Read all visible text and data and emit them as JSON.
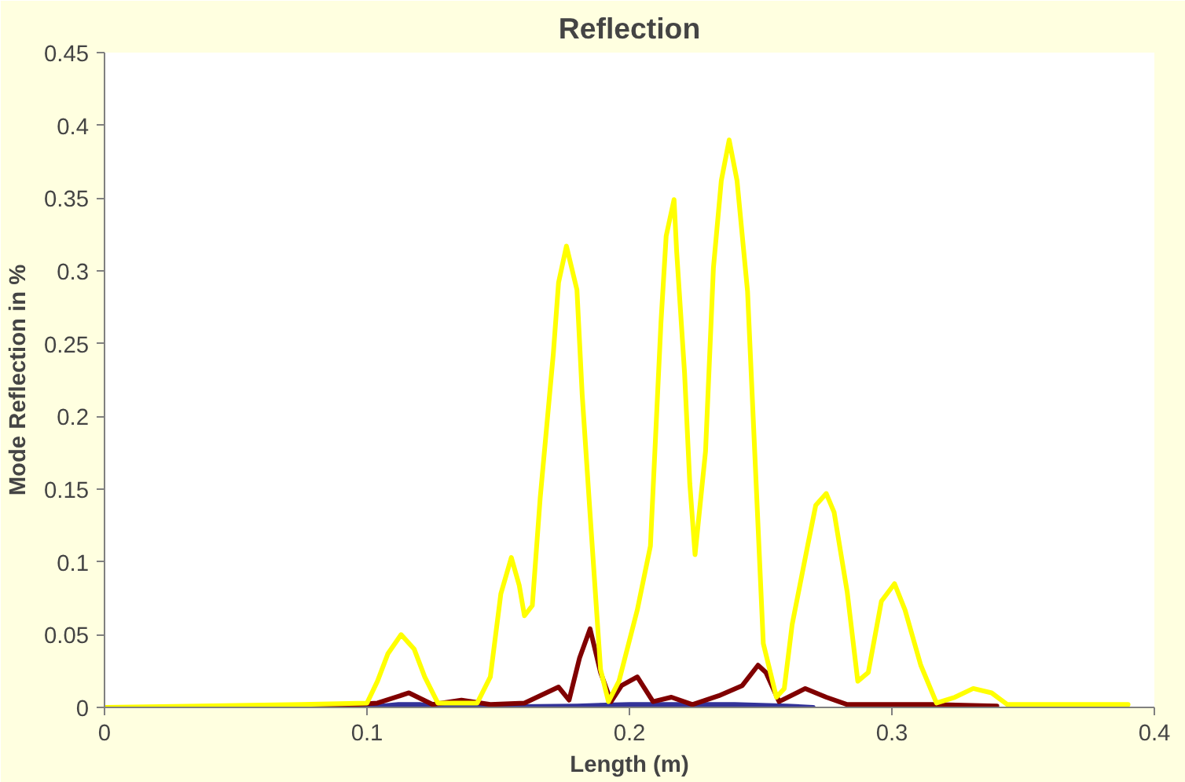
{
  "chart_data": {
    "type": "line",
    "title": "Reflection",
    "xlabel": "Length (m)",
    "ylabel": "Mode Reflection in %",
    "xlim": [
      0,
      0.4
    ],
    "ylim": [
      0,
      0.45
    ],
    "xticks": [
      0,
      0.1,
      0.2,
      0.3,
      0.4
    ],
    "yticks": [
      0,
      0.05,
      0.1,
      0.15,
      0.2,
      0.25,
      0.3,
      0.35,
      0.4,
      0.45
    ],
    "grid": false,
    "marker": "none",
    "line_style": "solid",
    "series": [
      {
        "color": "#333399",
        "x": [
          0,
          0.1,
          0.112,
          0.12,
          0.128,
          0.18,
          0.2,
          0.22,
          0.24,
          0.26,
          0.27
        ],
        "values": [
          0,
          0,
          0.002,
          0.002,
          0,
          0.001,
          0.002,
          0.002,
          0.002,
          0.001,
          0
        ]
      },
      {
        "color": "#800000",
        "x": [
          0,
          0.077,
          0.104,
          0.116,
          0.125,
          0.136,
          0.147,
          0.16,
          0.173,
          0.177,
          0.181,
          0.185,
          0.189,
          0.193,
          0.197,
          0.203,
          0.209,
          0.216,
          0.224,
          0.234,
          0.243,
          0.249,
          0.252,
          0.257,
          0.267,
          0.275,
          0.283,
          0.297,
          0.315,
          0.34
        ],
        "values": [
          0,
          null,
          0.003,
          0.01,
          0.002,
          0.005,
          0.002,
          0.003,
          0.014,
          0.005,
          0.034,
          0.054,
          0.024,
          0.004,
          0.015,
          0.021,
          0.004,
          0.007,
          0.002,
          0.008,
          0.015,
          0.029,
          0.024,
          0.004,
          0.013,
          0.007,
          0.002,
          0.002,
          0.002,
          0.001
        ]
      },
      {
        "color": "#ffff00",
        "x": [
          0,
          0.075,
          0.1,
          0.104,
          0.108,
          0.113,
          0.118,
          0.122,
          0.127,
          0.142,
          0.147,
          0.151,
          0.155,
          0.158,
          0.16,
          0.163,
          0.166,
          0.171,
          0.173,
          0.176,
          0.18,
          0.182,
          0.185,
          0.189,
          0.192,
          0.196,
          0.203,
          0.208,
          0.212,
          0.214,
          0.217,
          0.218,
          0.221,
          0.223,
          0.225,
          0.229,
          0.232,
          0.235,
          0.238,
          0.241,
          0.245,
          0.248,
          0.251,
          0.256,
          0.259,
          0.262,
          0.268,
          0.271,
          0.275,
          0.278,
          0.283,
          0.287,
          0.291,
          0.296,
          0.301,
          0.305,
          0.311,
          0.317,
          0.324,
          0.331,
          0.338,
          0.344,
          0.39
        ],
        "values": [
          0,
          0.002,
          0.003,
          0.018,
          0.037,
          0.05,
          0.04,
          0.021,
          0.003,
          0.003,
          0.021,
          0.078,
          0.103,
          0.084,
          0.063,
          0.07,
          0.144,
          0.243,
          0.292,
          0.317,
          0.287,
          0.215,
          0.133,
          0.026,
          0.004,
          0.018,
          0.067,
          0.111,
          0.264,
          0.324,
          0.349,
          0.313,
          0.23,
          0.154,
          0.105,
          0.176,
          0.302,
          0.362,
          0.39,
          0.362,
          0.286,
          0.165,
          0.044,
          0.007,
          0.013,
          0.057,
          0.112,
          0.139,
          0.147,
          0.134,
          0.079,
          0.018,
          0.024,
          0.073,
          0.085,
          0.067,
          0.029,
          0.003,
          0.007,
          0.013,
          0.01,
          0.002,
          0.002
        ]
      }
    ]
  }
}
